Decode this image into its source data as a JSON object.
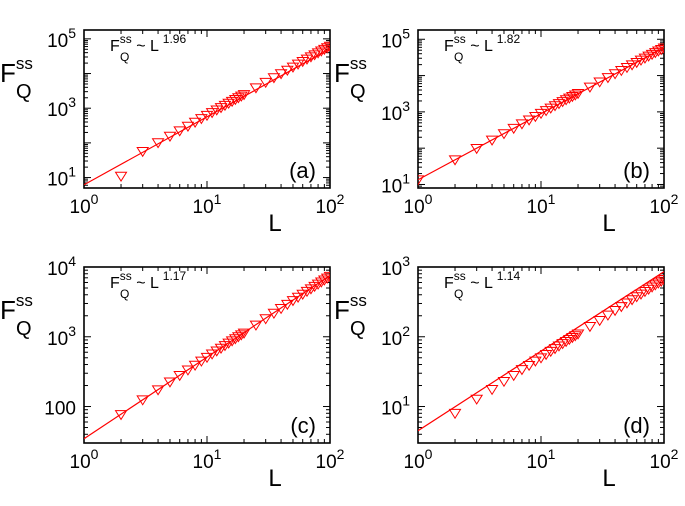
{
  "styles": {
    "marker_color": "#ff0000",
    "line_color": "#ff0000",
    "axis_color": "#000000"
  },
  "chart_data": [
    {
      "type": "scatter",
      "panel_label": "(a)",
      "xlabel": "L",
      "ylabel": {
        "main": "F",
        "sub": "Q",
        "sup": "ss"
      },
      "fit_label": {
        "main": "F",
        "sub": "Q",
        "sup": "ss",
        "base": "~ L",
        "exponent": "1.96"
      },
      "xscale": "log",
      "yscale": "log",
      "xlim": [
        1,
        100
      ],
      "ylim": [
        5,
        180000
      ],
      "x_ticks": [
        {
          "base": "10",
          "exp": "0",
          "value": 1
        },
        {
          "base": "10",
          "exp": "1",
          "value": 10
        },
        {
          "base": "10",
          "exp": "2",
          "value": 100
        }
      ],
      "y_ticks": [
        {
          "base": "10",
          "exp": "1",
          "value": 10
        },
        {
          "base": "10",
          "exp": "3",
          "value": 1000
        },
        {
          "base": "10",
          "exp": "5",
          "value": 100000
        }
      ],
      "fit_line": {
        "coefficient": 6.2,
        "exponent": 1.96
      },
      "marker": "triangle-down",
      "x": [
        2,
        3,
        4,
        5,
        6,
        7,
        8,
        9,
        10,
        11,
        12,
        13,
        14,
        15,
        16,
        17,
        18,
        19,
        20,
        25,
        30,
        35,
        40,
        45,
        50,
        55,
        60,
        65,
        70,
        75,
        80,
        85,
        90,
        95,
        100
      ],
      "y": [
        11,
        57,
        102,
        157,
        225,
        305,
        398,
        505,
        625,
        755,
        898,
        1050,
        1220,
        1400,
        1590,
        1800,
        2020,
        2250,
        2490,
        3890,
        5600,
        7620,
        9950,
        12600,
        15500,
        18800,
        22400,
        26300,
        30500,
        35000,
        39800,
        44900,
        50300,
        56000,
        62000
      ]
    },
    {
      "type": "scatter",
      "panel_label": "(b)",
      "xlabel": "L",
      "ylabel": {
        "main": "F",
        "sub": "Q",
        "sup": "ss"
      },
      "fit_label": {
        "main": "F",
        "sub": "Q",
        "sup": "ss",
        "base": "~ L",
        "exponent": "1.82"
      },
      "xscale": "log",
      "yscale": "log",
      "xlim": [
        1,
        100
      ],
      "ylim": [
        8,
        180000
      ],
      "x_ticks": [
        {
          "base": "10",
          "exp": "0",
          "value": 1
        },
        {
          "base": "10",
          "exp": "1",
          "value": 10
        },
        {
          "base": "10",
          "exp": "2",
          "value": 100
        }
      ],
      "y_ticks": [
        {
          "base": "10",
          "exp": "1",
          "value": 10
        },
        {
          "base": "10",
          "exp": "3",
          "value": 1000
        },
        {
          "base": "10",
          "exp": "5",
          "value": 100000
        }
      ],
      "fit_line": {
        "coefficient": 13.5,
        "exponent": 1.82
      },
      "marker": "triangle-down",
      "x": [
        1,
        2,
        3,
        4,
        5,
        6,
        7,
        8,
        9,
        10,
        11,
        12,
        13,
        14,
        15,
        16,
        17,
        18,
        19,
        20,
        25,
        30,
        35,
        40,
        45,
        50,
        55,
        60,
        65,
        70,
        75,
        80,
        85,
        90,
        95,
        100
      ],
      "y": [
        13.5,
        48,
        99,
        168,
        253,
        355,
        472,
        605,
        753,
        915,
        1090,
        1280,
        1490,
        1700,
        1930,
        2170,
        2420,
        2680,
        2950,
        3240,
        4860,
        6740,
        8890,
        11300,
        13900,
        16800,
        19900,
        23200,
        26800,
        30600,
        34600,
        38800,
        43300,
        47900,
        52800,
        57900
      ]
    },
    {
      "type": "scatter",
      "panel_label": "(c)",
      "xlabel": "L",
      "ylabel": {
        "main": "F",
        "sub": "Q",
        "sup": "ss"
      },
      "fit_label": {
        "main": "F",
        "sub": "Q",
        "sup": "ss",
        "base": "~ L",
        "exponent": "1.17"
      },
      "xscale": "log",
      "yscale": "log",
      "xlim": [
        1,
        100
      ],
      "ylim": [
        30,
        10000
      ],
      "x_ticks": [
        {
          "base": "10",
          "exp": "0",
          "value": 1
        },
        {
          "base": "10",
          "exp": "1",
          "value": 10
        },
        {
          "base": "10",
          "exp": "2",
          "value": 100
        }
      ],
      "y_ticks": [
        {
          "base": "100",
          "exp": "",
          "value": 100
        },
        {
          "base": "10",
          "exp": "3",
          "value": 1000
        },
        {
          "base": "10",
          "exp": "4",
          "value": 10000
        }
      ],
      "fit_line": {
        "coefficient": 34.5,
        "exponent": 1.17
      },
      "marker": "triangle-down",
      "x": [
        2,
        3,
        4,
        5,
        6,
        7,
        8,
        9,
        10,
        11,
        12,
        13,
        14,
        15,
        16,
        17,
        18,
        19,
        20,
        25,
        30,
        35,
        40,
        45,
        50,
        55,
        60,
        65,
        70,
        75,
        80,
        85,
        90,
        95,
        100
      ],
      "y": [
        77,
        125,
        174,
        226,
        280,
        335,
        392,
        449,
        508,
        568,
        628,
        689,
        751,
        814,
        877,
        941,
        1005,
        1070,
        1135,
        1474,
        1819,
        2180,
        2550,
        2930,
        3310,
        3700,
        4090,
        4490,
        4890,
        5300,
        5700,
        6120,
        6530,
        6950,
        7370
      ]
    },
    {
      "type": "scatter",
      "panel_label": "(d)",
      "xlabel": "L",
      "ylabel": {
        "main": "F",
        "sub": "Q",
        "sup": "ss"
      },
      "fit_label": {
        "main": "F",
        "sub": "Q",
        "sup": "ss",
        "base": "~ L",
        "exponent": "1.14"
      },
      "xscale": "log",
      "yscale": "log",
      "xlim": [
        1,
        100
      ],
      "ylim": [
        3,
        1000
      ],
      "x_ticks": [
        {
          "base": "10",
          "exp": "0",
          "value": 1
        },
        {
          "base": "10",
          "exp": "1",
          "value": 10
        },
        {
          "base": "10",
          "exp": "2",
          "value": 100
        }
      ],
      "y_ticks": [
        {
          "base": "10",
          "exp": "1",
          "value": 10
        },
        {
          "base": "10",
          "exp": "2",
          "value": 100
        },
        {
          "base": "10",
          "exp": "3",
          "value": 1000
        }
      ],
      "fit_line": {
        "coefficient": 4.5,
        "exponent": 1.14
      },
      "marker": "triangle-down",
      "x": [
        2,
        3,
        4,
        5,
        6,
        7,
        8,
        9,
        10,
        11,
        12,
        13,
        14,
        15,
        16,
        17,
        18,
        19,
        20,
        25,
        30,
        35,
        40,
        45,
        50,
        55,
        60,
        65,
        70,
        75,
        80,
        85,
        90,
        95,
        100
      ],
      "y": [
        8,
        12.8,
        17.6,
        23,
        28,
        34,
        39,
        45,
        50,
        56,
        62,
        68,
        74,
        80,
        86,
        92,
        98,
        104,
        110,
        141,
        172,
        205,
        239,
        272,
        306,
        341,
        376,
        411,
        447,
        483,
        519,
        556,
        592,
        629,
        666
      ]
    }
  ]
}
